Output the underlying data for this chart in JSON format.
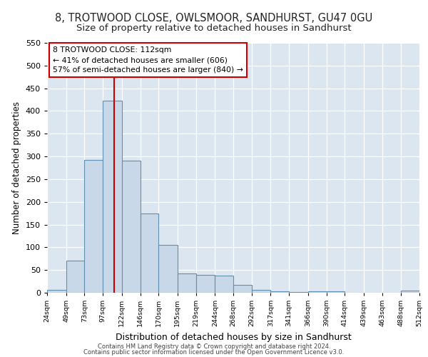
{
  "title": "8, TROTWOOD CLOSE, OWLSMOOR, SANDHURST, GU47 0GU",
  "subtitle": "Size of property relative to detached houses in Sandhurst",
  "xlabel": "Distribution of detached houses by size in Sandhurst",
  "ylabel": "Number of detached properties",
  "bin_edges": [
    24,
    49,
    73,
    97,
    122,
    146,
    170,
    195,
    219,
    244,
    268,
    292,
    317,
    341,
    366,
    390,
    414,
    439,
    463,
    488,
    512
  ],
  "bar_heights": [
    7,
    70,
    292,
    422,
    290,
    174,
    105,
    43,
    40,
    37,
    17,
    7,
    3,
    2,
    3,
    3,
    0,
    0,
    0,
    5
  ],
  "bar_color": "#c8d8e8",
  "bar_edgecolor": "#6090b0",
  "bar_linewidth": 0.8,
  "vline_x": 112,
  "vline_color": "#cc0000",
  "vline_linewidth": 1.5,
  "annotation_title": "8 TROTWOOD CLOSE: 112sqm",
  "annotation_line1": "← 41% of detached houses are smaller (606)",
  "annotation_line2": "57% of semi-detached houses are larger (840) →",
  "annotation_box_facecolor": "#ffffff",
  "annotation_box_edgecolor": "#cc0000",
  "ylim": [
    0,
    550
  ],
  "yticks": [
    0,
    50,
    100,
    150,
    200,
    250,
    300,
    350,
    400,
    450,
    500,
    550
  ],
  "background_color": "#dce6f0",
  "footer_line1": "Contains HM Land Registry data © Crown copyright and database right 2024.",
  "footer_line2": "Contains public sector information licensed under the Open Government Licence v3.0.",
  "title_fontsize": 10.5,
  "subtitle_fontsize": 9.5,
  "ylabel_fontsize": 8.5,
  "xlabel_fontsize": 9
}
